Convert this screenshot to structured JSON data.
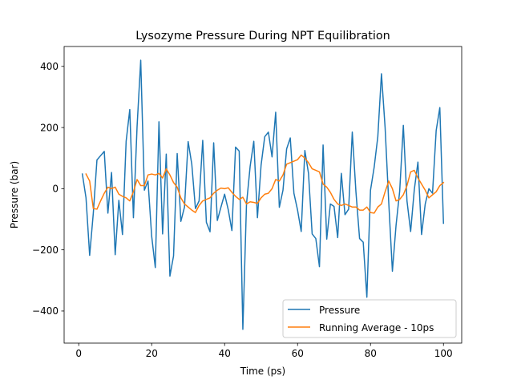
{
  "chart_data": {
    "type": "line",
    "title": "Lysozyme Pressure During NPT Equilibration",
    "xlabel": "Time (ps)",
    "ylabel": "Pressure (bar)",
    "xlim": [
      -4,
      105
    ],
    "ylim": [
      -505,
      465
    ],
    "xticks": [
      0,
      20,
      40,
      60,
      80,
      100
    ],
    "yticks": [
      -400,
      -200,
      0,
      200,
      400
    ],
    "xtick_labels": [
      "0",
      "20",
      "40",
      "60",
      "80",
      "100"
    ],
    "ytick_labels": [
      "−400",
      "−200",
      "0",
      "200",
      "400"
    ],
    "grid": false,
    "legend_position": "lower right",
    "series": [
      {
        "name": "Pressure",
        "color": "#1f77b4",
        "x": [
          1,
          2,
          3,
          4,
          5,
          6,
          7,
          8,
          9,
          10,
          11,
          12,
          13,
          14,
          15,
          16,
          17,
          18,
          19,
          20,
          21,
          22,
          23,
          24,
          25,
          26,
          27,
          28,
          29,
          30,
          31,
          32,
          33,
          34,
          35,
          36,
          37,
          38,
          39,
          40,
          41,
          42,
          43,
          44,
          45,
          46,
          47,
          48,
          49,
          50,
          51,
          52,
          53,
          54,
          55,
          56,
          57,
          58,
          59,
          60,
          61,
          62,
          63,
          64,
          65,
          66,
          67,
          68,
          69,
          70,
          71,
          72,
          73,
          74,
          75,
          76,
          77,
          78,
          79,
          80,
          81,
          82,
          83,
          84,
          85,
          86,
          87,
          88,
          89,
          90,
          91,
          92,
          93,
          94,
          95,
          96,
          97,
          98,
          99,
          100
        ],
        "y": [
          48,
          -30,
          -218,
          -80,
          94,
          108,
          122,
          -80,
          53,
          -216,
          -38,
          -150,
          155,
          259,
          -95,
          203,
          420,
          -5,
          25,
          -155,
          -258,
          219,
          -148,
          113,
          -286,
          -220,
          115,
          -107,
          -60,
          154,
          80,
          -65,
          -40,
          158,
          -110,
          -141,
          150,
          -104,
          -60,
          -18,
          -69,
          -137,
          136,
          123,
          -460,
          -50,
          73,
          155,
          -95,
          77,
          170,
          185,
          104,
          250,
          -61,
          -5,
          130,
          166,
          -15,
          -70,
          -140,
          125,
          50,
          -148,
          -163,
          -255,
          143,
          -165,
          -50,
          -58,
          -160,
          50,
          -85,
          -67,
          185,
          -10,
          -163,
          -175,
          -355,
          -5,
          70,
          170,
          376,
          200,
          -45,
          -270,
          -120,
          -8,
          207,
          -40,
          -140,
          -4,
          87,
          -150,
          -50,
          0,
          -15,
          190,
          265,
          -113
        ]
      },
      {
        "name": "Running Average - 10ps",
        "color": "#ff7f0e",
        "x": [
          2,
          3,
          4,
          5,
          6,
          7,
          8,
          9,
          10,
          11,
          12,
          13,
          14,
          15,
          16,
          17,
          18,
          19,
          20,
          21,
          22,
          23,
          24,
          25,
          26,
          27,
          28,
          29,
          30,
          31,
          32,
          33,
          34,
          35,
          36,
          37,
          38,
          39,
          40,
          41,
          42,
          43,
          44,
          45,
          46,
          47,
          48,
          49,
          50,
          51,
          52,
          53,
          54,
          55,
          56,
          57,
          58,
          59,
          60,
          61,
          62,
          63,
          64,
          65,
          66,
          67,
          68,
          69,
          70,
          71,
          72,
          73,
          74,
          75,
          76,
          77,
          78,
          79,
          80,
          81,
          82,
          83,
          84,
          85,
          86,
          87,
          88,
          89,
          90,
          91,
          92,
          93,
          94,
          95,
          96,
          97,
          98,
          99,
          100
        ],
        "y": [
          48,
          25,
          -65,
          -67,
          -40,
          -15,
          5,
          0,
          5,
          -18,
          -25,
          -30,
          -40,
          -10,
          30,
          10,
          10,
          45,
          48,
          45,
          50,
          35,
          65,
          45,
          20,
          5,
          -30,
          -50,
          -60,
          -70,
          -78,
          -55,
          -40,
          -35,
          -30,
          -15,
          -5,
          2,
          0,
          3,
          -12,
          -25,
          -35,
          -28,
          -50,
          -43,
          -45,
          -48,
          -30,
          -18,
          -15,
          0,
          30,
          25,
          45,
          80,
          85,
          90,
          95,
          110,
          100,
          85,
          65,
          60,
          55,
          15,
          5,
          -12,
          -35,
          -50,
          -55,
          -50,
          -55,
          -60,
          -60,
          -70,
          -70,
          -60,
          -78,
          -80,
          -60,
          -50,
          -10,
          25,
          0,
          -40,
          -35,
          -20,
          10,
          55,
          60,
          35,
          15,
          -5,
          -30,
          -20,
          -10,
          10,
          20
        ]
      }
    ]
  }
}
